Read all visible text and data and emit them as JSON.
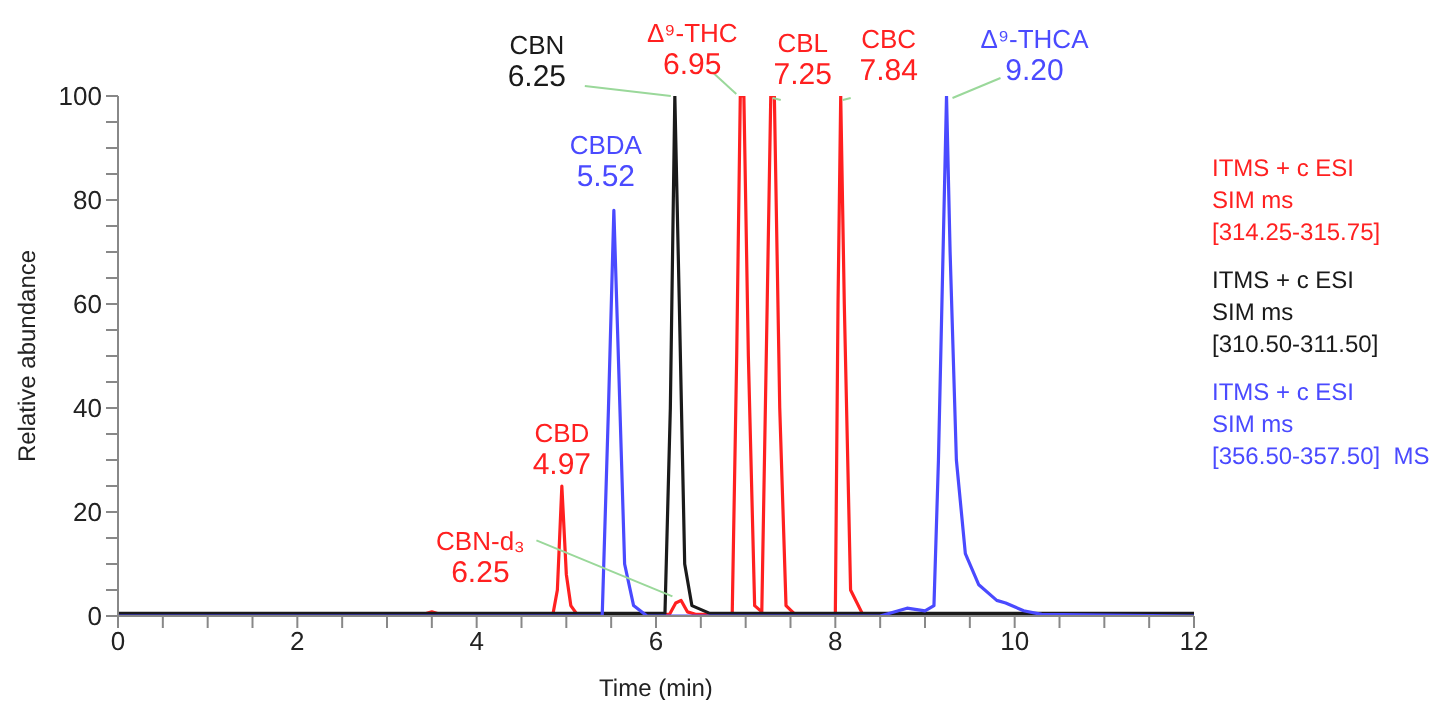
{
  "chart_data": {
    "type": "line",
    "xlabel": "Time (min)",
    "ylabel": "Relative abundance",
    "xlim": [
      0,
      12
    ],
    "ylim": [
      0,
      100
    ],
    "xticks": [
      0,
      {
        "value": 0.5,
        "label": null
      },
      {
        "value": 1,
        "label": null
      },
      {
        "value": 1.5,
        "label": null
      },
      2,
      {
        "value": 2.5,
        "label": null
      },
      {
        "value": 3,
        "label": null
      },
      {
        "value": 3.5,
        "label": null
      },
      4,
      {
        "value": 4.5,
        "label": null
      },
      {
        "value": 5,
        "label": null
      },
      {
        "value": 5.5,
        "label": null
      },
      6,
      {
        "value": 6.5,
        "label": null
      },
      {
        "value": 7,
        "label": null
      },
      {
        "value": 7.5,
        "label": null
      },
      8,
      {
        "value": 8.5,
        "label": null
      },
      {
        "value": 9,
        "label": null
      },
      {
        "value": 9.5,
        "label": null
      },
      10,
      {
        "value": 10.5,
        "label": null
      },
      {
        "value": 11,
        "label": null
      },
      {
        "value": 11.5,
        "label": null
      },
      12
    ],
    "yticks": [
      0,
      {
        "value": 5,
        "label": null
      },
      {
        "value": 10,
        "label": null
      },
      {
        "value": 15,
        "label": null
      },
      20,
      {
        "value": 25,
        "label": null
      },
      {
        "value": 30,
        "label": null
      },
      {
        "value": 35,
        "label": null
      },
      40,
      {
        "value": 45,
        "label": null
      },
      {
        "value": 50,
        "label": null
      },
      {
        "value": 55,
        "label": null
      },
      60,
      {
        "value": 65,
        "label": null
      },
      {
        "value": 70,
        "label": null
      },
      {
        "value": 75,
        "label": null
      },
      80,
      {
        "value": 85,
        "label": null
      },
      {
        "value": 90,
        "label": null
      },
      {
        "value": 95,
        "label": null
      },
      100
    ],
    "legend": "right",
    "series": [
      {
        "name": "ITMS + c ESI\nSIM ms\n[314.25-315.75]",
        "color": "#ff2020",
        "x": [
          0,
          3.4,
          3.5,
          3.6,
          4.85,
          4.9,
          4.95,
          5.0,
          5.05,
          5.12,
          6.15,
          6.22,
          6.28,
          6.35,
          6.45,
          6.85,
          6.9,
          6.94,
          6.98,
          7.03,
          7.1,
          7.18,
          7.24,
          7.28,
          7.32,
          7.38,
          7.45,
          7.55,
          8.0,
          8.03,
          8.06,
          8.1,
          8.17,
          8.3
        ],
        "values": [
          0.3,
          0.3,
          0.8,
          0.3,
          0.3,
          5,
          25,
          8,
          2,
          0.3,
          0.3,
          2.5,
          3,
          0.8,
          0.3,
          0.3,
          50,
          100,
          100,
          50,
          2,
          0.8,
          60,
          100,
          100,
          40,
          2,
          0.3,
          0.3,
          60,
          100,
          60,
          5,
          0.5
        ]
      },
      {
        "name": "ITMS + c ESI\nSIM ms\n[310.50-311.50]",
        "color": "#1a1a1a",
        "x": [
          0,
          6.1,
          6.16,
          6.21,
          6.26,
          6.32,
          6.4,
          6.6,
          12
        ],
        "values": [
          0.5,
          0.5,
          40,
          100,
          60,
          10,
          2,
          0.5,
          0.5
        ]
      },
      {
        "name": "ITMS + c ESI\nSIM ms\n[356.50-357.50]  MS",
        "color": "#4a4aff",
        "x": [
          0,
          5.4,
          5.47,
          5.53,
          5.58,
          5.65,
          5.75,
          5.9,
          8.5,
          8.8,
          9.0,
          9.1,
          9.15,
          9.24,
          9.28,
          9.35,
          9.45,
          9.6,
          9.8,
          9.9,
          10.1,
          10.3,
          12
        ],
        "values": [
          0,
          0,
          40,
          78,
          50,
          10,
          2,
          0,
          0,
          1.5,
          1,
          2,
          30,
          100,
          70,
          30,
          12,
          6,
          3,
          2.5,
          1,
          0.3,
          0
        ]
      }
    ],
    "annotations": [
      {
        "text": "CBN\n6.25",
        "x": 6.21,
        "y": 100
      },
      {
        "text": "Δ⁹-THC\n6.95",
        "x": 6.94,
        "y": 100
      },
      {
        "text": "CBL\n7.25",
        "x": 7.28,
        "y": 100
      },
      {
        "text": "CBC\n7.84",
        "x": 8.06,
        "y": 100
      },
      {
        "text": "Δ⁹-THCA\n9.20",
        "x": 9.24,
        "y": 100
      },
      {
        "text": "CBDA\n5.52",
        "x": 5.53,
        "y": 78
      },
      {
        "text": "CBD\n4.97",
        "x": 4.95,
        "y": 25
      },
      {
        "text": "CBN-d₃\n6.25",
        "x": 6.25,
        "y": 3
      }
    ]
  }
}
